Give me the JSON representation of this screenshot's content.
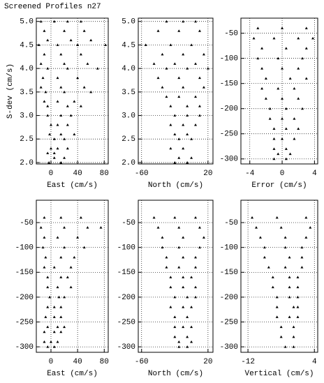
{
  "chart_data": [
    {
      "type": "scatter",
      "title": "Screened Profiles n27",
      "xlabel": "East (cm/s)",
      "ylabel": "S-dev (cm/s)",
      "color": "#000000",
      "grid": true,
      "xlim": [
        -22,
        86
      ],
      "ylim": [
        1.97,
        5.07
      ],
      "xticks": [
        0,
        40,
        80
      ],
      "yticks": [
        {
          "value": 2,
          "label": "2.0"
        },
        2.5,
        {
          "value": 3,
          "label": "3.0"
        },
        3.5,
        {
          "value": 4,
          "label": "4.0"
        },
        4.5,
        {
          "value": 5,
          "label": "5.0"
        }
      ],
      "x": [
        -15,
        5,
        25,
        45,
        -10,
        20,
        50,
        -5,
        30,
        60,
        -18,
        10,
        40,
        82,
        -10,
        15,
        45,
        -15,
        20,
        55,
        -5,
        25,
        70,
        -12,
        10,
        40,
        -15,
        15,
        50,
        -8,
        20,
        60,
        -10,
        10,
        35,
        -5,
        25,
        45,
        -5,
        15,
        30,
        0,
        10,
        25,
        -2,
        15,
        35,
        5,
        20,
        0,
        10,
        25,
        -5,
        5,
        5,
        20,
        -3,
        15
      ],
      "y": [
        5.0,
        5.0,
        5.0,
        5.0,
        4.8,
        4.8,
        4.8,
        4.6,
        4.6,
        4.6,
        4.5,
        4.5,
        4.5,
        4.5,
        4.3,
        4.3,
        4.3,
        4.1,
        4.1,
        4.1,
        4.0,
        4.0,
        4.0,
        3.8,
        3.8,
        3.8,
        3.6,
        3.6,
        3.6,
        3.5,
        3.5,
        3.5,
        3.3,
        3.3,
        3.3,
        3.2,
        3.2,
        3.2,
        3.0,
        3.0,
        3.0,
        2.8,
        2.8,
        2.8,
        2.6,
        2.6,
        2.6,
        2.5,
        2.5,
        2.3,
        2.3,
        2.3,
        2.2,
        2.2,
        2.1,
        2.1,
        2.0,
        2.0
      ]
    },
    {
      "type": "scatter",
      "xlabel": "North (cm/s)",
      "color": "#000000",
      "grid": true,
      "xlim": [
        -64,
        26
      ],
      "ylim": [
        1.97,
        5.07
      ],
      "xticks": [
        -60,
        20
      ],
      "yticks": [
        {
          "value": 2,
          "label": "2.0"
        },
        2.5,
        {
          "value": 3,
          "label": "3.0"
        },
        3.5,
        {
          "value": 4,
          "label": "4.0"
        },
        4.5,
        {
          "value": 5,
          "label": "5.0"
        }
      ],
      "x": [
        -30,
        -10,
        5,
        -40,
        -15,
        10,
        -55,
        -25,
        0,
        -35,
        -10,
        15,
        -45,
        -20,
        5,
        -30,
        -5,
        20,
        -40,
        -15,
        10,
        -35,
        -10,
        15,
        -30,
        -15,
        5,
        -25,
        -5,
        10,
        -20,
        -5,
        10,
        -25,
        -10,
        5,
        -20,
        -5,
        -15,
        0,
        -25,
        -10,
        -15,
        0,
        -20,
        -5
      ],
      "y": [
        5.0,
        5.0,
        5.0,
        4.8,
        4.8,
        4.8,
        4.5,
        4.5,
        4.5,
        4.3,
        4.3,
        4.3,
        4.1,
        4.1,
        4.1,
        4.0,
        4.0,
        4.0,
        3.8,
        3.8,
        3.8,
        3.6,
        3.6,
        3.6,
        3.4,
        3.4,
        3.4,
        3.2,
        3.2,
        3.2,
        3.0,
        3.0,
        3.0,
        2.8,
        2.8,
        2.8,
        2.6,
        2.6,
        2.5,
        2.5,
        2.3,
        2.3,
        2.1,
        2.1,
        2.0,
        2.0
      ]
    },
    {
      "type": "scatter",
      "xlabel": "Error (cm/s)",
      "color": "#000000",
      "grid": true,
      "xlim": [
        -5.1,
        4.4
      ],
      "ylim": [
        -310,
        -20
      ],
      "xticks": [
        -4,
        0,
        4
      ],
      "yticks": [
        -300,
        -250,
        -200,
        -150,
        -100,
        -50
      ],
      "x": [
        -3,
        0,
        3,
        -3.5,
        -1,
        2,
        3.8,
        -2.5,
        0.5,
        3,
        -3,
        -0.5,
        2.5,
        -2.5,
        0,
        2,
        -2,
        1,
        3,
        -2.5,
        -0.5,
        1.5,
        -2,
        0,
        2,
        -1.5,
        0.5,
        2.5,
        -1.5,
        0,
        1.5,
        -1,
        0.5,
        2,
        -1,
        0,
        1.5,
        -1,
        0.5,
        -0.5,
        1,
        -1,
        0.5
      ],
      "y": [
        -40,
        -40,
        -40,
        -60,
        -60,
        -60,
        -60,
        -80,
        -80,
        -80,
        -100,
        -100,
        -100,
        -120,
        -120,
        -120,
        -140,
        -140,
        -140,
        -160,
        -160,
        -160,
        -180,
        -180,
        -180,
        -200,
        -200,
        -200,
        -220,
        -220,
        -220,
        -240,
        -240,
        -240,
        -260,
        -260,
        -260,
        -280,
        -280,
        -290,
        -290,
        -300,
        -300
      ]
    },
    {
      "type": "scatter",
      "xlabel": "East (cm/s)",
      "color": "#000000",
      "grid": true,
      "xlim": [
        -22,
        86
      ],
      "ylim": [
        -311,
        -5
      ],
      "xticks": [
        0,
        40,
        80
      ],
      "yticks": [
        -300,
        -250,
        -200,
        -150,
        -100,
        -50
      ],
      "x": [
        -10,
        15,
        45,
        -15,
        20,
        55,
        75,
        -10,
        10,
        40,
        -12,
        20,
        50,
        -8,
        15,
        35,
        -10,
        5,
        30,
        -5,
        15,
        25,
        -5,
        10,
        30,
        -2,
        12,
        20,
        -5,
        5,
        15,
        -8,
        5,
        15,
        -5,
        10,
        20,
        -10,
        5,
        15,
        -10,
        0,
        10,
        -5,
        5
      ],
      "y": [
        -40,
        -40,
        -40,
        -60,
        -60,
        -60,
        -60,
        -80,
        -80,
        -80,
        -100,
        -100,
        -100,
        -120,
        -120,
        -120,
        -140,
        -140,
        -140,
        -160,
        -160,
        -160,
        -180,
        -180,
        -180,
        -200,
        -200,
        -200,
        -220,
        -220,
        -220,
        -240,
        -240,
        -240,
        -260,
        -260,
        -260,
        -270,
        -270,
        -270,
        -290,
        -290,
        -290,
        -300,
        -300
      ]
    },
    {
      "type": "scatter",
      "xlabel": "North (cm/s)",
      "color": "#000000",
      "grid": true,
      "xlim": [
        -64,
        26
      ],
      "ylim": [
        -311,
        -5
      ],
      "xticks": [
        -60,
        20
      ],
      "yticks": [
        -300,
        -250,
        -200,
        -150,
        -100,
        -50
      ],
      "x": [
        -45,
        -20,
        5,
        -40,
        -15,
        10,
        -35,
        -10,
        15,
        -35,
        -15,
        10,
        -30,
        -10,
        5,
        -30,
        -15,
        5,
        -25,
        -10,
        0,
        -25,
        -10,
        5,
        -20,
        -5,
        5,
        -25,
        -10,
        0,
        -20,
        -5,
        -20,
        -10,
        0,
        -20,
        -5,
        -15,
        0,
        -15,
        -5
      ],
      "y": [
        -40,
        -40,
        -40,
        -60,
        -60,
        -60,
        -80,
        -80,
        -80,
        -100,
        -100,
        -100,
        -120,
        -120,
        -120,
        -140,
        -140,
        -140,
        -160,
        -160,
        -160,
        -180,
        -180,
        -180,
        -200,
        -200,
        -200,
        -220,
        -220,
        -220,
        -240,
        -240,
        -260,
        -260,
        -260,
        -280,
        -280,
        -290,
        -290,
        -300,
        -300
      ]
    },
    {
      "type": "scatter",
      "xlabel": "Vertical (cm/s)",
      "color": "#000000",
      "grid": true,
      "xlim": [
        -13.7,
        4.8
      ],
      "ylim": [
        -311,
        -5
      ],
      "xticks": [
        -12,
        {
          "value": 4,
          "label": "4"
        }
      ],
      "yticks": [
        -300,
        -250,
        -200,
        -150,
        -100,
        -50
      ],
      "x": [
        -11,
        -5,
        2,
        -10,
        -4,
        3,
        -9,
        -3,
        2,
        -8,
        -3,
        1,
        -8,
        -2,
        1,
        -7,
        -3,
        1,
        -6,
        -2,
        0,
        -6,
        -2,
        0,
        -5,
        -2,
        0,
        -5,
        -1,
        0,
        -5,
        -2,
        0,
        -4,
        -1,
        -4,
        -1,
        -3,
        -1
      ],
      "y": [
        -40,
        -40,
        -40,
        -60,
        -60,
        -60,
        -80,
        -80,
        -80,
        -100,
        -100,
        -100,
        -120,
        -120,
        -120,
        -140,
        -140,
        -140,
        -160,
        -160,
        -160,
        -180,
        -180,
        -180,
        -200,
        -200,
        -200,
        -220,
        -220,
        -220,
        -240,
        -240,
        -240,
        -260,
        -260,
        -280,
        -280,
        -300,
        -300
      ]
    }
  ]
}
